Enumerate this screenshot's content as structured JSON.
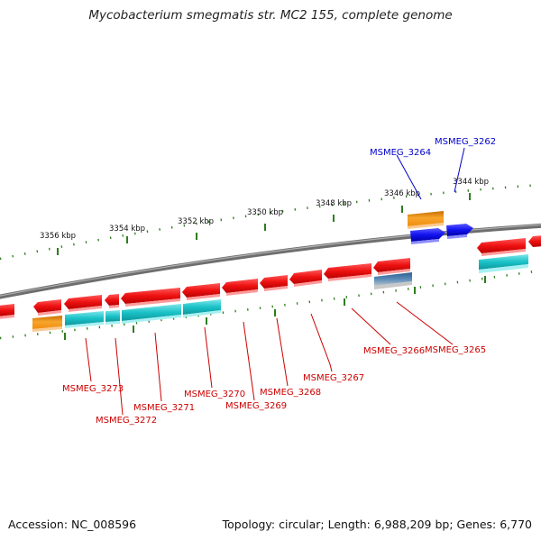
{
  "title": "Mycobacterium smegmatis str. MC2 155, complete genome",
  "footer": {
    "accession": "Accession: NC_008596",
    "summary": "Topology: circular; Length: 6,988,209 bp; Genes: 6,770"
  },
  "colors": {
    "backbone": "#808080",
    "tick": "#2e7d1e",
    "red_gene": "#ee1111",
    "cyan_gene": "#19c2c8",
    "orange_gene": "#f28c0f",
    "blue_gene": "#1111ee",
    "steel_gene": "#4a7aa8",
    "red_label": "#cc0000",
    "blue_label": "#0000cc"
  },
  "scale_ticks": [
    "3344 kbp",
    "3346 kbp",
    "3348 kbp",
    "3350 kbp",
    "3352 kbp",
    "3354 kbp",
    "3356 kbp"
  ],
  "gene_labels": [
    "MSMEG_3264",
    "MSMEG_3262",
    "MSMEG_3273",
    "MSMEG_3272",
    "MSMEG_3271",
    "MSMEG_3270",
    "MSMEG_3269",
    "MSMEG_3268",
    "MSMEG_3267",
    "MSMEG_3266",
    "MSMEG_3265"
  ]
}
